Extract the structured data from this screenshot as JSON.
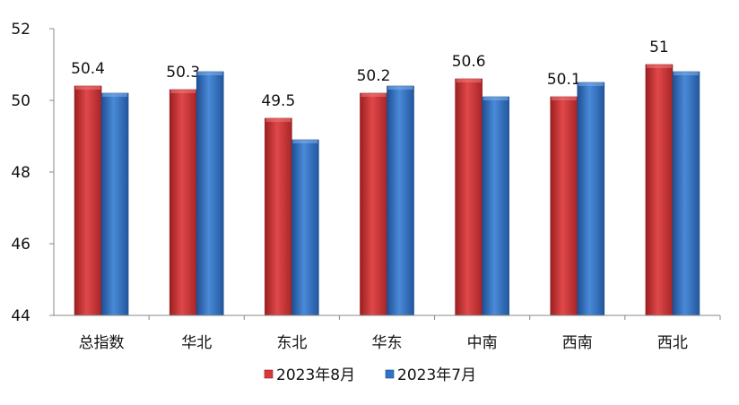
{
  "chart_data": {
    "type": "bar",
    "categories": [
      "总指数",
      "华北",
      "东北",
      "华东",
      "中南",
      "西南",
      "西北"
    ],
    "series": [
      {
        "name": "2023年8月",
        "values": [
          50.4,
          50.3,
          49.5,
          50.2,
          50.6,
          50.1,
          51.0
        ],
        "labels": [
          "50.4",
          "50.3",
          "49.5",
          "50.2",
          "50.6",
          "50.1",
          "51"
        ],
        "color": "#d9383a"
      },
      {
        "name": "2023年7月",
        "values": [
          50.2,
          50.8,
          48.9,
          50.4,
          50.1,
          50.5,
          50.8
        ],
        "color": "#2f73c9"
      }
    ],
    "ylim": [
      44,
      52
    ],
    "yticks": [
      "44",
      "46",
      "48",
      "50",
      "52"
    ],
    "grid": false,
    "legend": "bottom"
  }
}
